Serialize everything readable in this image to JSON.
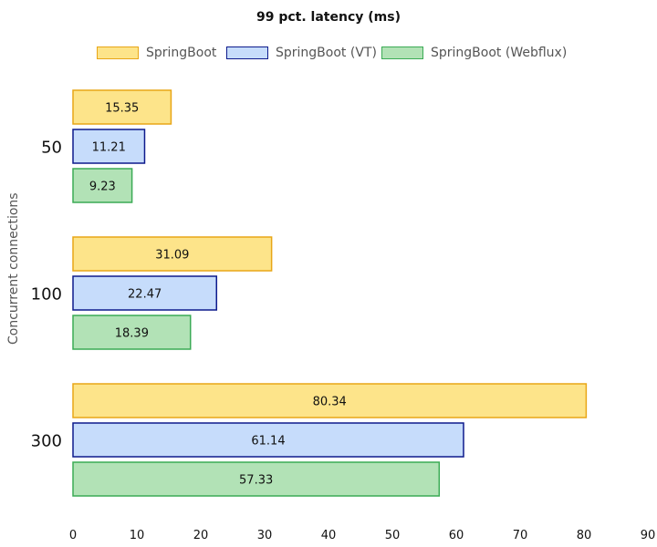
{
  "chart_data": {
    "type": "bar",
    "orientation": "horizontal",
    "title": "99 pct. latency (ms)",
    "ylabel": "Concurrent connections",
    "xlabel": "",
    "categories": [
      "50",
      "100",
      "300"
    ],
    "series": [
      {
        "name": "SpringBoot",
        "values": [
          15.35,
          31.09,
          80.34
        ],
        "fill": "#fde48a",
        "stroke": "#e8a617"
      },
      {
        "name": "SpringBoot (VT)",
        "values": [
          11.21,
          22.47,
          61.14
        ],
        "fill": "#c6dcfb",
        "stroke": "#0d1a8c"
      },
      {
        "name": "SpringBoot (Webflux)",
        "values": [
          9.23,
          18.39,
          57.33
        ],
        "fill": "#b2e2b6",
        "stroke": "#3bab55"
      }
    ],
    "xlim": [
      0,
      90
    ],
    "xticks": [
      0,
      10,
      20,
      30,
      40,
      50,
      60,
      70,
      80,
      90
    ],
    "grid": false,
    "legend_position": "top"
  }
}
